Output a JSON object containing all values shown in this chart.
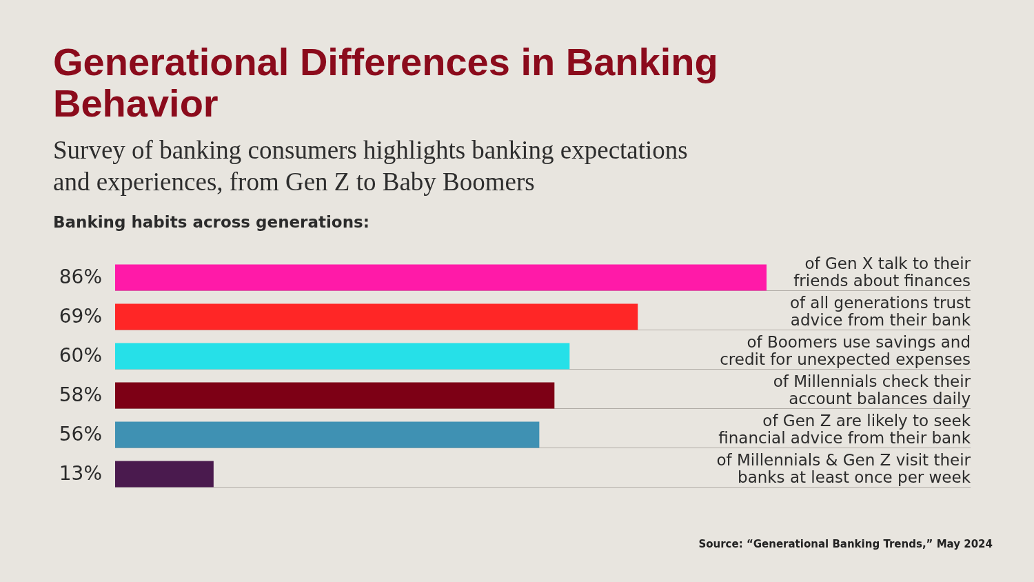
{
  "chart_data": {
    "type": "bar",
    "orientation": "horizontal",
    "title": "Generational Differences in Banking Behavior",
    "subtitle": "Survey of banking consumers highlights banking expectations and experiences, from Gen Z to Baby Boomers",
    "categories": [
      "of Gen X talk to their friends about finances",
      "of all generations trust advice from their bank",
      "of Boomers use savings and credit for unexpected expenses",
      "of Millennials check their account balances daily",
      "of Gen Z are likely to seek financial advice from their bank",
      "of Millennials & Gen Z visit their banks at least once per week"
    ],
    "values": [
      86,
      69,
      60,
      58,
      56,
      13
    ],
    "colors": [
      "#ff1aa8",
      "#ff2626",
      "#26e0e8",
      "#7d0015",
      "#3f91b3",
      "#4a1a4e"
    ],
    "value_labels": [
      "86%",
      "69%",
      "60%",
      "58%",
      "56%",
      "13%"
    ],
    "grid": "y",
    "annotations": [
      "Banking habits across generations:",
      "Source: “Generational Banking Trends,” May 2024"
    ]
  }
}
